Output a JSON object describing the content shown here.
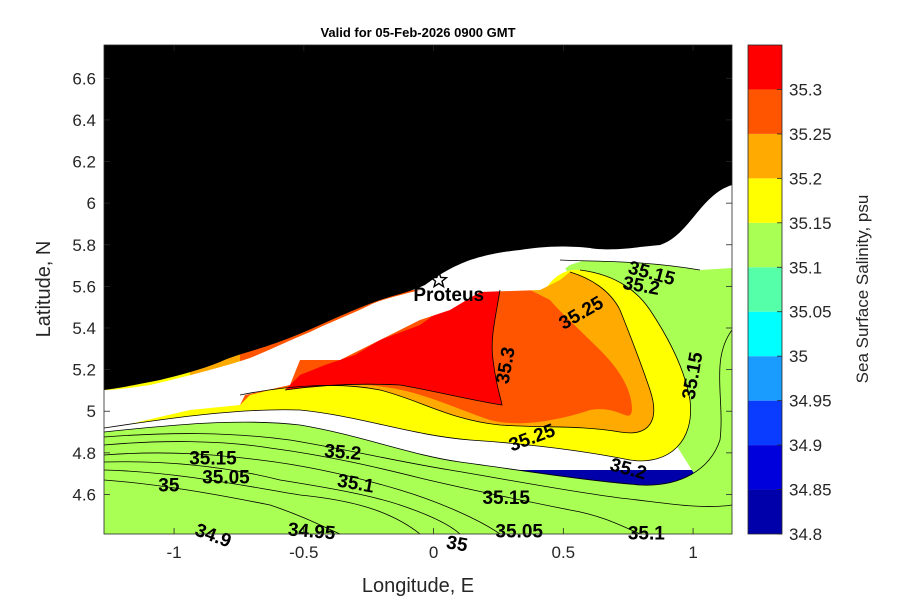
{
  "chart_data": {
    "type": "heatmap",
    "title": "Valid for 05-Feb-2026 0900 GMT",
    "xlabel": "Longitude, E",
    "ylabel": "Latitude, N",
    "colorbar_label": "Sea Surface Salinity, psu",
    "xlim": [
      -1.27,
      1.15
    ],
    "ylim": [
      4.41,
      6.76
    ],
    "xticks": [
      -1,
      -0.5,
      0,
      0.5,
      1
    ],
    "xtick_labels": [
      "-1",
      "-0.5",
      "0",
      "0.5",
      "1"
    ],
    "yticks": [
      4.6,
      4.8,
      5.0,
      5.2,
      5.4,
      5.6,
      5.8,
      6.0,
      6.2,
      6.4,
      6.6
    ],
    "ytick_labels": [
      "4.6",
      "4.8",
      "5",
      "5.2",
      "5.4",
      "5.6",
      "5.8",
      "6",
      "6.2",
      "6.4",
      "6.6"
    ],
    "colorbar": {
      "levels": [
        34.8,
        34.85,
        34.9,
        34.95,
        35.0,
        35.05,
        35.1,
        35.15,
        35.2,
        35.25,
        35.3,
        35.35
      ],
      "colors": [
        "#0000aa",
        "#0000dd",
        "#0a3cff",
        "#1a9cff",
        "#00ffff",
        "#55ffaa",
        "#aaff55",
        "#ffff00",
        "#ffaa00",
        "#ff5500",
        "#ff0000"
      ],
      "tick_values": [
        34.8,
        34.85,
        34.9,
        34.95,
        35.0,
        35.05,
        35.1,
        35.15,
        35.2,
        35.25,
        35.3
      ],
      "tick_labels": [
        "34.8",
        "34.85",
        "34.9",
        "34.95",
        "35",
        "35.05",
        "35.1",
        "35.15",
        "35.2",
        "35.25",
        "35.3"
      ]
    },
    "land_color": "#000000",
    "nodata_color": "#ffffff",
    "station": {
      "name": "Proteus",
      "lon": 0.02,
      "lat": 5.63,
      "marker": "star"
    },
    "contour_labels": [
      {
        "text": "35.15",
        "lon": -0.85,
        "lat": 4.77,
        "rot": 0
      },
      {
        "text": "35.05",
        "lon": -0.8,
        "lat": 4.68,
        "rot": 0
      },
      {
        "text": "35",
        "lon": -1.02,
        "lat": 4.64,
        "rot": 0
      },
      {
        "text": "35.2",
        "lon": -0.35,
        "lat": 4.8,
        "rot": 5
      },
      {
        "text": "35.1",
        "lon": -0.3,
        "lat": 4.65,
        "rot": 10
      },
      {
        "text": "34.9",
        "lon": -0.85,
        "lat": 4.4,
        "rot": 20
      },
      {
        "text": "34.95",
        "lon": -0.47,
        "lat": 4.42,
        "rot": 5
      },
      {
        "text": "35",
        "lon": 0.09,
        "lat": 4.36,
        "rot": 10
      },
      {
        "text": "35.3",
        "lon": 0.28,
        "lat": 5.22,
        "rot": -80
      },
      {
        "text": "35.25",
        "lon": 0.38,
        "lat": 4.87,
        "rot": -20
      },
      {
        "text": "35.15",
        "lon": 0.28,
        "lat": 4.58,
        "rot": 0
      },
      {
        "text": "35.05",
        "lon": 0.33,
        "lat": 4.42,
        "rot": 0
      },
      {
        "text": "35.25",
        "lon": 0.57,
        "lat": 5.47,
        "rot": -30
      },
      {
        "text": "35.2",
        "lon": 0.75,
        "lat": 4.72,
        "rot": 15
      },
      {
        "text": "35.15",
        "lon": 0.84,
        "lat": 5.66,
        "rot": 15
      },
      {
        "text": "35.2",
        "lon": 0.8,
        "lat": 5.6,
        "rot": 10
      },
      {
        "text": "35.15",
        "lon": 1.0,
        "lat": 5.17,
        "rot": -80
      },
      {
        "text": "35.1",
        "lon": 0.82,
        "lat": 4.41,
        "rot": 0
      }
    ]
  }
}
